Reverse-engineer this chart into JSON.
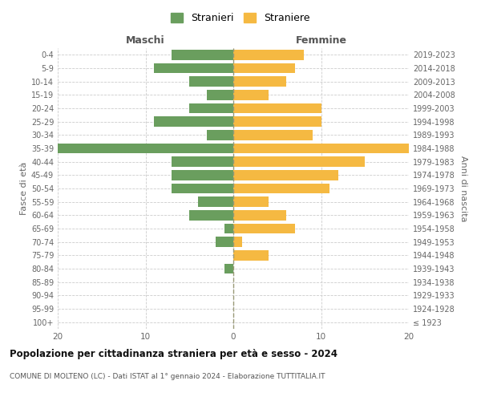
{
  "age_groups": [
    "100+",
    "95-99",
    "90-94",
    "85-89",
    "80-84",
    "75-79",
    "70-74",
    "65-69",
    "60-64",
    "55-59",
    "50-54",
    "45-49",
    "40-44",
    "35-39",
    "30-34",
    "25-29",
    "20-24",
    "15-19",
    "10-14",
    "5-9",
    "0-4"
  ],
  "birth_years": [
    "≤ 1923",
    "1924-1928",
    "1929-1933",
    "1934-1938",
    "1939-1943",
    "1944-1948",
    "1949-1953",
    "1954-1958",
    "1959-1963",
    "1964-1968",
    "1969-1973",
    "1974-1978",
    "1979-1983",
    "1984-1988",
    "1989-1993",
    "1994-1998",
    "1999-2003",
    "2004-2008",
    "2009-2013",
    "2014-2018",
    "2019-2023"
  ],
  "maschi": [
    0,
    0,
    0,
    0,
    1,
    0,
    2,
    1,
    5,
    4,
    7,
    7,
    7,
    20,
    3,
    9,
    5,
    3,
    5,
    9,
    7
  ],
  "femmine": [
    0,
    0,
    0,
    0,
    0,
    4,
    1,
    7,
    6,
    4,
    11,
    12,
    15,
    20,
    9,
    10,
    10,
    4,
    6,
    7,
    8
  ],
  "color_maschi": "#6a9e5e",
  "color_femmine": "#f5b942",
  "grid_color": "#cccccc",
  "title": "Popolazione per cittadinanza straniera per età e sesso - 2024",
  "subtitle": "COMUNE DI MOLTENO (LC) - Dati ISTAT al 1° gennaio 2024 - Elaborazione TUTTITALIA.IT",
  "xlabel_left": "Maschi",
  "xlabel_right": "Femmine",
  "ylabel_left": "Fasce di età",
  "ylabel_right": "Anni di nascita",
  "legend_stranieri": "Stranieri",
  "legend_straniere": "Straniere",
  "xlim": 20
}
